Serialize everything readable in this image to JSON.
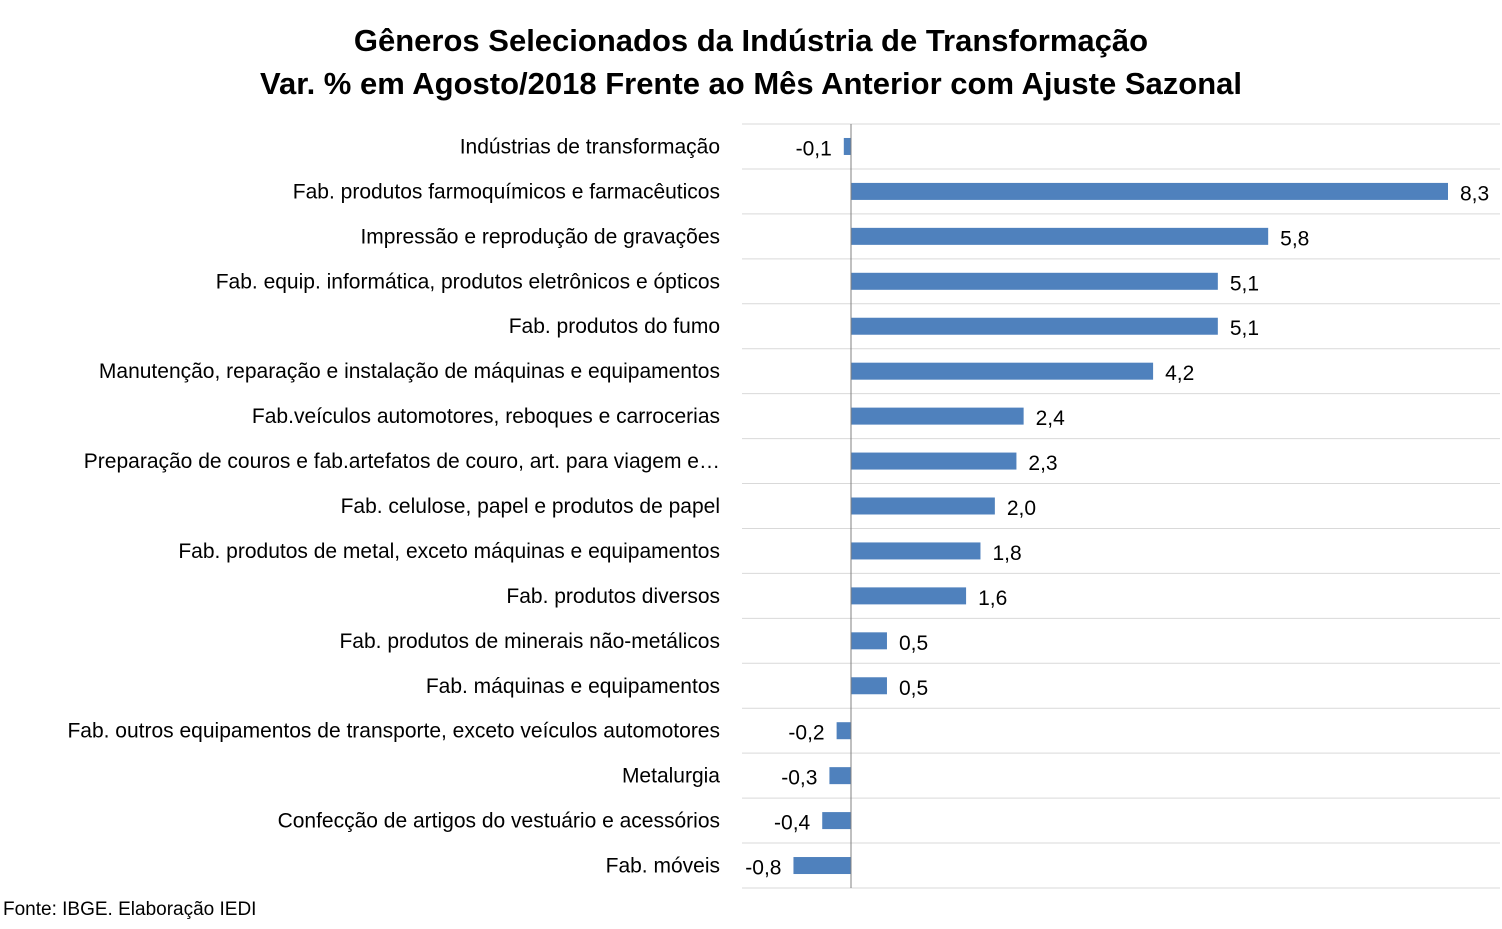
{
  "chart_data": {
    "type": "bar",
    "orientation": "horizontal",
    "title": "Gêneros Selecionados da Indústria de Transformação",
    "subtitle": "Var. % em Agosto/2018 Frente ao Mês Anterior com Ajuste Sazonal",
    "categories": [
      "Indústrias de transformação",
      "Fab. produtos farmoquímicos e farmacêuticos",
      "Impressão e reprodução de gravações",
      "Fab. equip. informática, produtos eletrônicos e ópticos",
      "Fab. produtos do fumo",
      "Manutenção, reparação e instalação de máquinas e equipamentos",
      "Fab.veículos automotores, reboques e carrocerias",
      "Preparação de couros e fab.artefatos de couro, art. para viagem e…",
      "Fab. celulose, papel e produtos de papel",
      "Fab. produtos de metal, exceto máquinas e equipamentos",
      "Fab. produtos diversos",
      "Fab. produtos de minerais não-metálicos",
      "Fab. máquinas e equipamentos",
      "Fab. outros equipamentos de transporte, exceto veículos automotores",
      "Metalurgia",
      "Confecção de artigos do vestuário e acessórios",
      "Fab. móveis"
    ],
    "values": [
      -0.1,
      8.3,
      5.8,
      5.1,
      5.1,
      4.2,
      2.4,
      2.3,
      2.0,
      1.8,
      1.6,
      0.5,
      0.5,
      -0.2,
      -0.3,
      -0.4,
      -0.8
    ],
    "value_labels": [
      "-0,1",
      "8,3",
      "5,8",
      "5,1",
      "5,1",
      "4,2",
      "2,4",
      "2,3",
      "2,0",
      "1,8",
      "1,6",
      "0,5",
      "0,5",
      "-0,2",
      "-0,3",
      "-0,4",
      "-0,8"
    ],
    "xlim": [
      -1.5,
      9.0
    ],
    "grid": "horizontal",
    "legend": "none",
    "bar_color": "#4f81bd",
    "grid_color": "#d9d9d9",
    "axis_color": "#808080"
  },
  "source": "Fonte: IBGE. Elaboração IEDI"
}
